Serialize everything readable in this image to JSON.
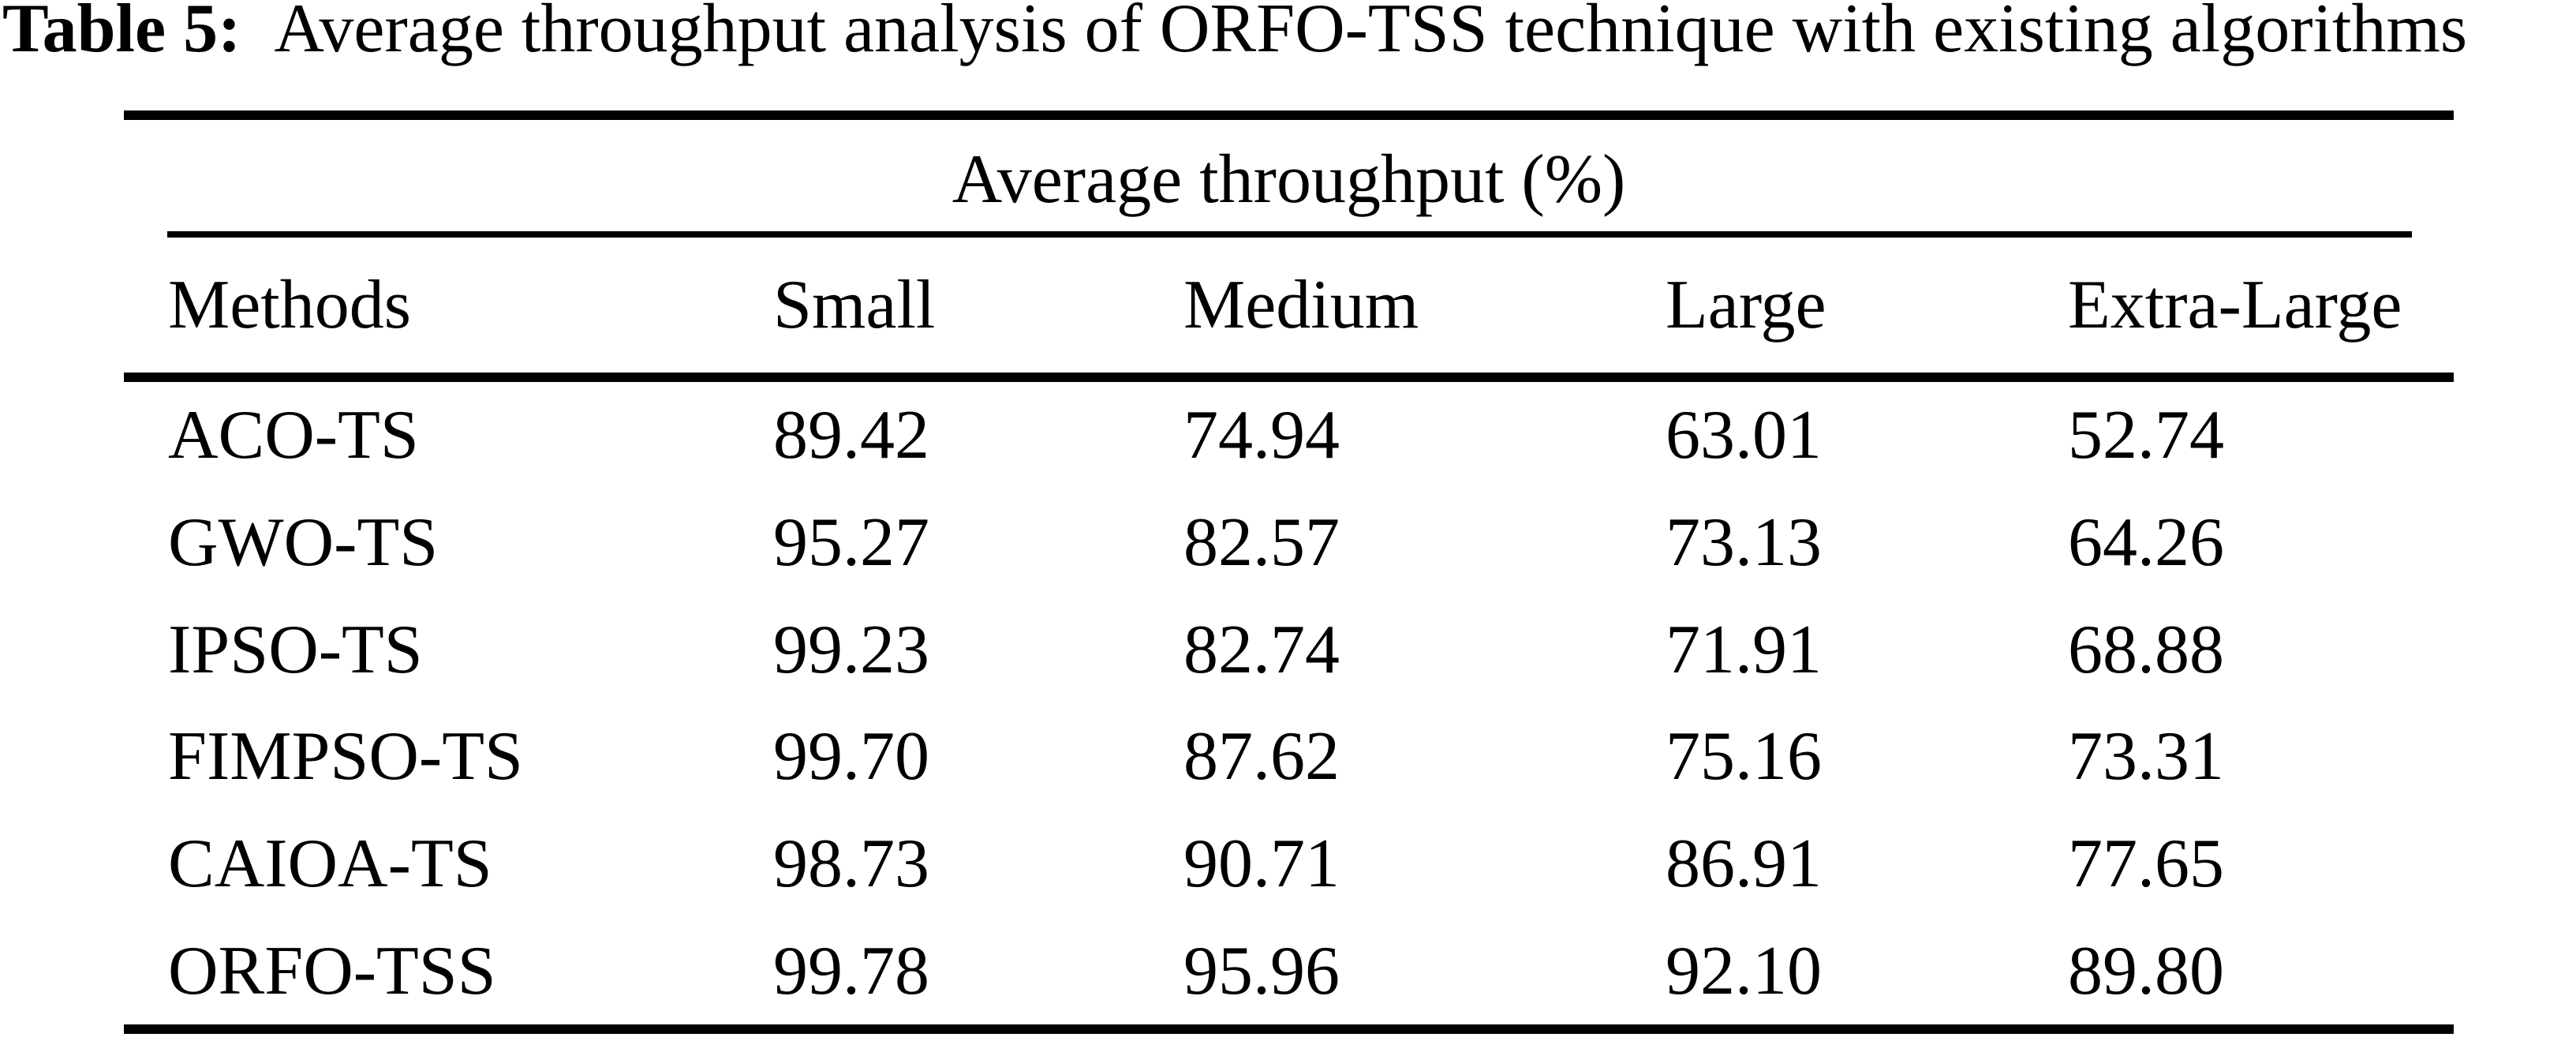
{
  "title": {
    "label": "Table 5:",
    "text": "Average throughput analysis of ORFO-TSS technique with existing algorithms"
  },
  "table": {
    "span_header": "Average throughput (%)",
    "columns": [
      "Methods",
      "Small",
      "Medium",
      "Large",
      "Extra-Large"
    ],
    "rows": [
      {
        "method": "ACO-TS",
        "values": [
          "89.42",
          "74.94",
          "63.01",
          "52.74"
        ]
      },
      {
        "method": "GWO-TS",
        "values": [
          "95.27",
          "82.57",
          "73.13",
          "64.26"
        ]
      },
      {
        "method": "IPSO-TS",
        "values": [
          "99.23",
          "82.74",
          "71.91",
          "68.88"
        ]
      },
      {
        "method": "FIMPSO-TS",
        "values": [
          "99.70",
          "87.62",
          "75.16",
          "73.31"
        ]
      },
      {
        "method": "CAIOA-TS",
        "values": [
          "98.73",
          "90.71",
          "86.91",
          "77.65"
        ]
      },
      {
        "method": "ORFO-TSS",
        "values": [
          "99.78",
          "95.96",
          "92.10",
          "89.80"
        ]
      }
    ]
  },
  "chart_data": {
    "type": "table",
    "title": "Table 5: Average throughput analysis of ORFO-TSS technique with existing algorithms",
    "group_header": "Average throughput (%)",
    "columns": [
      "Methods",
      "Small",
      "Medium",
      "Large",
      "Extra-Large"
    ],
    "rows": [
      [
        "ACO-TS",
        89.42,
        74.94,
        63.01,
        52.74
      ],
      [
        "GWO-TS",
        95.27,
        82.57,
        73.13,
        64.26
      ],
      [
        "IPSO-TS",
        99.23,
        82.74,
        71.91,
        68.88
      ],
      [
        "FIMPSO-TS",
        99.7,
        87.62,
        75.16,
        73.31
      ],
      [
        "CAIOA-TS",
        98.73,
        90.71,
        86.91,
        77.65
      ],
      [
        "ORFO-TSS",
        99.78,
        95.96,
        92.1,
        89.8
      ]
    ]
  },
  "colors": {
    "text": "#000000",
    "background": "#ffffff",
    "rule": "#000000"
  }
}
